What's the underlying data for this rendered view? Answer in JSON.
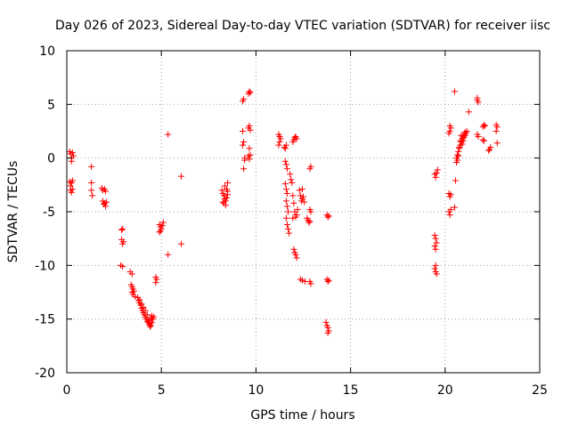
{
  "chart_data": {
    "type": "scatter",
    "title": "Day 026 of 2023, Sidereal Day-to-day VTEC variation (SDTVAR) for receiver iisc",
    "xlabel": "GPS time / hours",
    "ylabel": "SDTVAR / TECUs",
    "xlim": [
      0,
      25
    ],
    "ylim": [
      -20,
      10
    ],
    "xticks": [
      "0",
      "5",
      "10",
      "15",
      "20",
      "25"
    ],
    "yticks": [
      "-20",
      "-15",
      "-10",
      "-5",
      "0",
      "5",
      "10"
    ],
    "grid": true,
    "marker": "plus",
    "color": "#ff0000",
    "series": [
      {
        "name": "SDTVAR",
        "points": [
          [
            0.15,
            0.6
          ],
          [
            0.2,
            0.4
          ],
          [
            0.25,
            0.0
          ],
          [
            0.3,
            0.5
          ],
          [
            0.35,
            0.2
          ],
          [
            0.25,
            -0.3
          ],
          [
            0.15,
            -2.2
          ],
          [
            0.2,
            -2.6
          ],
          [
            0.25,
            -2.3
          ],
          [
            0.3,
            -2.1
          ],
          [
            0.2,
            -3.0
          ],
          [
            0.25,
            -3.2
          ],
          [
            0.3,
            -2.9
          ],
          [
            1.3,
            -0.8
          ],
          [
            1.3,
            -2.3
          ],
          [
            1.3,
            -3.0
          ],
          [
            1.35,
            -3.5
          ],
          [
            1.85,
            -2.8
          ],
          [
            1.9,
            -3.0
          ],
          [
            2.0,
            -2.9
          ],
          [
            2.05,
            -3.1
          ],
          [
            1.9,
            -4.0
          ],
          [
            1.95,
            -4.3
          ],
          [
            2.0,
            -4.2
          ],
          [
            2.05,
            -4.5
          ],
          [
            2.1,
            -4.1
          ],
          [
            2.9,
            -6.7
          ],
          [
            2.95,
            -6.6
          ],
          [
            2.9,
            -7.6
          ],
          [
            3.0,
            -7.8
          ],
          [
            2.95,
            -8.0
          ],
          [
            2.85,
            -10.0
          ],
          [
            2.95,
            -10.1
          ],
          [
            3.35,
            -10.6
          ],
          [
            3.45,
            -10.8
          ],
          [
            3.4,
            -11.8
          ],
          [
            3.45,
            -12.0
          ],
          [
            3.5,
            -12.2
          ],
          [
            3.45,
            -12.5
          ],
          [
            3.5,
            -12.7
          ],
          [
            3.55,
            -12.4
          ],
          [
            3.6,
            -12.9
          ],
          [
            3.75,
            -13.0
          ],
          [
            3.8,
            -13.3
          ],
          [
            3.85,
            -13.5
          ],
          [
            3.9,
            -13.7
          ],
          [
            3.95,
            -14.0
          ],
          [
            4.0,
            -14.2
          ],
          [
            4.05,
            -14.4
          ],
          [
            4.1,
            -14.6
          ],
          [
            4.15,
            -14.8
          ],
          [
            4.2,
            -15.0
          ],
          [
            4.25,
            -15.2
          ],
          [
            4.3,
            -15.3
          ],
          [
            4.35,
            -15.5
          ],
          [
            4.4,
            -15.4
          ],
          [
            4.45,
            -15.6
          ],
          [
            4.5,
            -15.3
          ],
          [
            4.55,
            -15.0
          ],
          [
            4.6,
            -14.8
          ],
          [
            4.45,
            -14.9
          ],
          [
            4.35,
            -15.1
          ],
          [
            4.25,
            -14.6
          ],
          [
            4.15,
            -14.2
          ],
          [
            4.05,
            -13.9
          ],
          [
            3.95,
            -13.6
          ],
          [
            3.85,
            -13.2
          ],
          [
            4.5,
            -14.7
          ],
          [
            4.4,
            -15.7
          ],
          [
            4.7,
            -11.1
          ],
          [
            4.75,
            -11.3
          ],
          [
            4.7,
            -11.6
          ],
          [
            4.9,
            -6.2
          ],
          [
            4.95,
            -6.4
          ],
          [
            5.0,
            -6.6
          ],
          [
            5.05,
            -6.3
          ],
          [
            5.1,
            -6.0
          ],
          [
            4.95,
            -6.8
          ],
          [
            4.9,
            -6.9
          ],
          [
            5.35,
            2.2
          ],
          [
            5.35,
            -9.0
          ],
          [
            6.05,
            -1.7
          ],
          [
            6.05,
            -8.0
          ],
          [
            8.2,
            -3.0
          ],
          [
            8.25,
            -3.3
          ],
          [
            8.3,
            -3.5
          ],
          [
            8.35,
            -3.8
          ],
          [
            8.4,
            -4.0
          ],
          [
            8.45,
            -3.7
          ],
          [
            8.5,
            -3.4
          ],
          [
            8.3,
            -4.2
          ],
          [
            8.4,
            -4.4
          ],
          [
            8.5,
            -3.1
          ],
          [
            8.45,
            -2.9
          ],
          [
            8.35,
            -2.6
          ],
          [
            8.5,
            -2.3
          ],
          [
            8.25,
            -4.1
          ],
          [
            9.3,
            5.3
          ],
          [
            9.35,
            5.5
          ],
          [
            9.6,
            6.0
          ],
          [
            9.65,
            6.2
          ],
          [
            9.7,
            6.1
          ],
          [
            9.3,
            2.5
          ],
          [
            9.35,
            1.5
          ],
          [
            9.3,
            1.2
          ],
          [
            9.4,
            0.0
          ],
          [
            9.35,
            -1.0
          ],
          [
            9.4,
            -0.2
          ],
          [
            9.6,
            2.8
          ],
          [
            9.65,
            3.0
          ],
          [
            9.7,
            2.6
          ],
          [
            9.65,
            0.9
          ],
          [
            9.7,
            0.3
          ],
          [
            9.6,
            0.2
          ],
          [
            9.65,
            -0.1
          ],
          [
            11.2,
            2.2
          ],
          [
            11.25,
            2.0
          ],
          [
            11.3,
            1.8
          ],
          [
            11.25,
            1.5
          ],
          [
            11.2,
            1.2
          ],
          [
            11.5,
            1.0
          ],
          [
            11.55,
            0.9
          ],
          [
            11.6,
            1.2
          ],
          [
            11.55,
            -0.3
          ],
          [
            11.6,
            -0.6
          ],
          [
            11.65,
            -1.0
          ],
          [
            11.55,
            -2.4
          ],
          [
            11.6,
            -2.9
          ],
          [
            11.65,
            -3.3
          ],
          [
            11.6,
            -4.0
          ],
          [
            11.65,
            -4.5
          ],
          [
            11.7,
            -5.0
          ],
          [
            11.6,
            -5.6
          ],
          [
            11.65,
            -6.2
          ],
          [
            11.7,
            -6.6
          ],
          [
            11.75,
            -7.0
          ],
          [
            11.8,
            -1.5
          ],
          [
            11.85,
            -2.0
          ],
          [
            11.9,
            -2.3
          ],
          [
            11.95,
            1.5
          ],
          [
            12.0,
            1.7
          ],
          [
            12.05,
            1.9
          ],
          [
            12.1,
            2.0
          ],
          [
            12.15,
            1.8
          ],
          [
            11.95,
            -3.5
          ],
          [
            12.0,
            -4.2
          ],
          [
            12.05,
            -5.0
          ],
          [
            12.1,
            -5.5
          ],
          [
            12.15,
            -5.3
          ],
          [
            12.2,
            -4.8
          ],
          [
            11.95,
            -5.6
          ],
          [
            12.0,
            -8.5
          ],
          [
            12.05,
            -8.8
          ],
          [
            12.1,
            -9.0
          ],
          [
            12.15,
            -9.3
          ],
          [
            12.3,
            -3.0
          ],
          [
            12.35,
            -3.5
          ],
          [
            12.4,
            -4.0
          ],
          [
            12.45,
            -3.8
          ],
          [
            12.5,
            -3.6
          ],
          [
            12.55,
            -4.1
          ],
          [
            12.45,
            -2.9
          ],
          [
            12.35,
            -11.3
          ],
          [
            12.45,
            -11.4
          ],
          [
            12.6,
            -11.5
          ],
          [
            12.7,
            -5.6
          ],
          [
            12.75,
            -5.8
          ],
          [
            12.8,
            -6.0
          ],
          [
            12.85,
            -5.9
          ],
          [
            12.85,
            -4.8
          ],
          [
            12.9,
            -5.0
          ],
          [
            12.85,
            -1.0
          ],
          [
            12.9,
            -0.8
          ],
          [
            12.85,
            -11.5
          ],
          [
            12.9,
            -11.7
          ],
          [
            13.75,
            -5.3
          ],
          [
            13.8,
            -5.5
          ],
          [
            13.85,
            -5.4
          ],
          [
            13.75,
            -11.3
          ],
          [
            13.8,
            -11.5
          ],
          [
            13.85,
            -11.4
          ],
          [
            13.7,
            -15.3
          ],
          [
            13.75,
            -15.6
          ],
          [
            13.8,
            -15.8
          ],
          [
            13.85,
            -16.1
          ],
          [
            13.8,
            -16.3
          ],
          [
            19.45,
            -1.5
          ],
          [
            19.5,
            -1.8
          ],
          [
            19.55,
            -1.4
          ],
          [
            19.6,
            -1.1
          ],
          [
            19.45,
            -7.2
          ],
          [
            19.5,
            -7.5
          ],
          [
            19.55,
            -7.9
          ],
          [
            19.45,
            -8.2
          ],
          [
            19.5,
            -8.5
          ],
          [
            19.45,
            -10.3
          ],
          [
            19.5,
            -10.6
          ],
          [
            19.55,
            -10.8
          ],
          [
            19.5,
            -10.0
          ],
          [
            20.2,
            2.3
          ],
          [
            20.25,
            2.5
          ],
          [
            20.3,
            2.8
          ],
          [
            20.25,
            3.0
          ],
          [
            20.25,
            -3.6
          ],
          [
            20.3,
            -3.4
          ],
          [
            20.2,
            -3.3
          ],
          [
            20.2,
            -5.0
          ],
          [
            20.25,
            -5.3
          ],
          [
            20.3,
            -4.8
          ],
          [
            20.5,
            6.2
          ],
          [
            20.55,
            -2.1
          ],
          [
            20.5,
            -4.6
          ],
          [
            20.6,
            0.0
          ],
          [
            20.65,
            0.3
          ],
          [
            20.7,
            0.6
          ],
          [
            20.75,
            0.9
          ],
          [
            20.8,
            1.2
          ],
          [
            20.85,
            1.5
          ],
          [
            20.9,
            1.8
          ],
          [
            20.95,
            2.0
          ],
          [
            21.0,
            2.2
          ],
          [
            21.05,
            2.4
          ],
          [
            21.1,
            2.3
          ],
          [
            21.15,
            2.5
          ],
          [
            20.6,
            -0.4
          ],
          [
            20.65,
            -0.2
          ],
          [
            20.7,
            0.2
          ],
          [
            20.75,
            1.0
          ],
          [
            20.8,
            1.6
          ],
          [
            20.85,
            2.1
          ],
          [
            20.9,
            1.3
          ],
          [
            20.95,
            1.6
          ],
          [
            21.0,
            1.9
          ],
          [
            21.05,
            2.1
          ],
          [
            21.25,
            4.3
          ],
          [
            21.7,
            5.4
          ],
          [
            21.75,
            5.2
          ],
          [
            21.7,
            5.6
          ],
          [
            21.7,
            2.2
          ],
          [
            21.75,
            2.0
          ],
          [
            22.0,
            2.9
          ],
          [
            22.05,
            3.1
          ],
          [
            22.1,
            3.0
          ],
          [
            22.0,
            1.7
          ],
          [
            22.05,
            1.6
          ],
          [
            22.3,
            0.7
          ],
          [
            22.35,
            0.8
          ],
          [
            22.4,
            1.0
          ],
          [
            22.7,
            3.1
          ],
          [
            22.75,
            2.9
          ],
          [
            22.7,
            2.5
          ],
          [
            22.75,
            1.4
          ]
        ]
      }
    ]
  }
}
